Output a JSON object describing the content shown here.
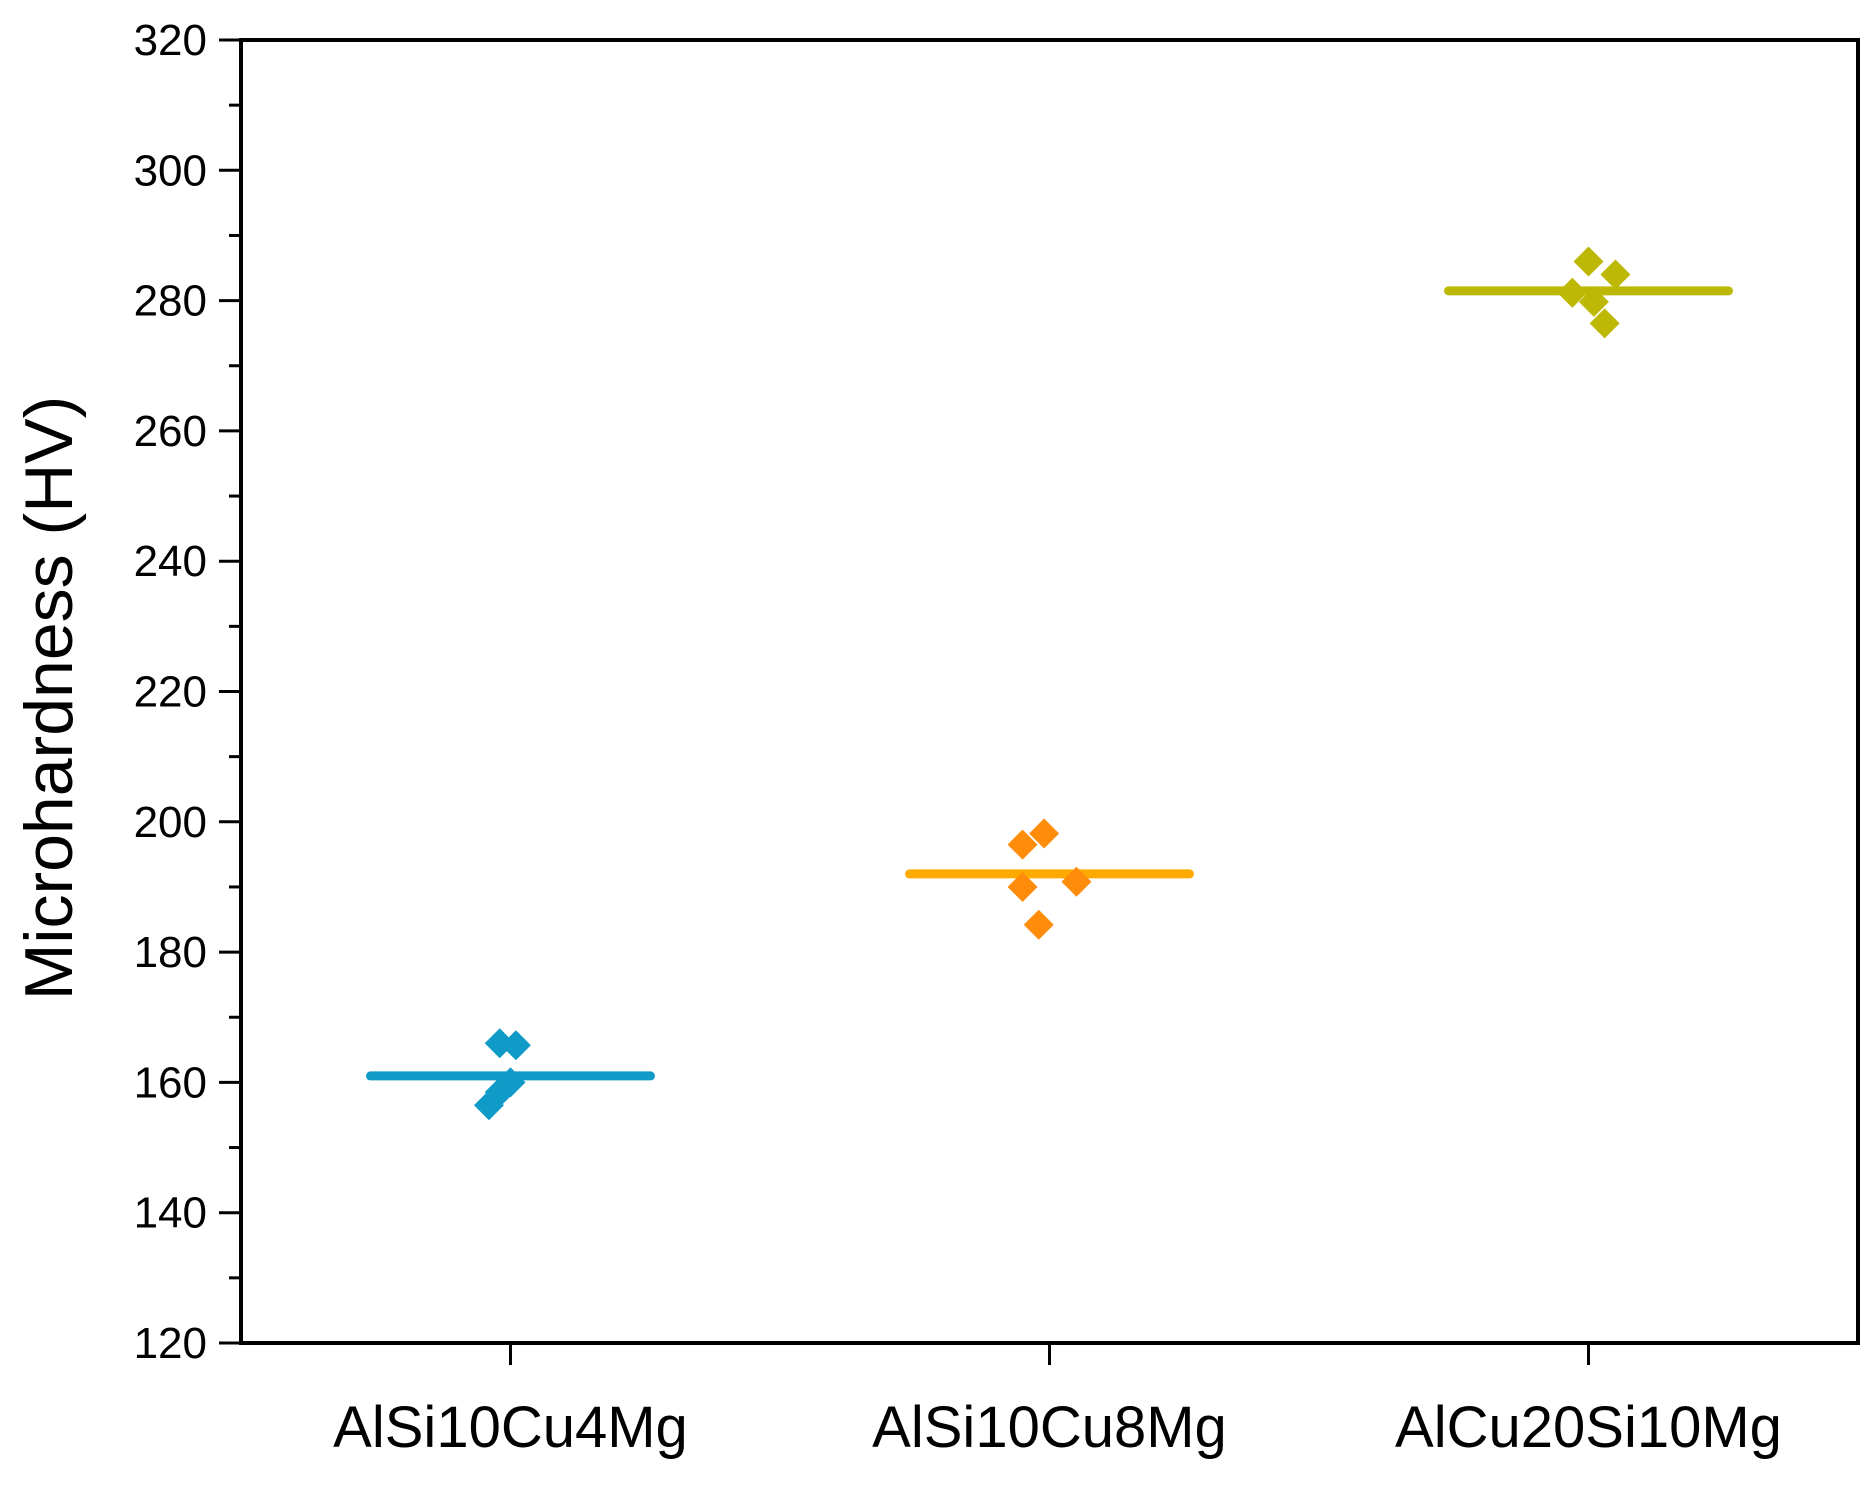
{
  "chart_data": {
    "type": "scatter",
    "title": "",
    "xlabel": "",
    "ylabel": "Microhardness (HV)",
    "ylim": [
      120,
      320
    ],
    "ytick_step": 20,
    "yminor_step": 10,
    "yticks": [
      "120",
      "140",
      "160",
      "180",
      "200",
      "220",
      "240",
      "260",
      "280",
      "300",
      "320"
    ],
    "categories": [
      "AlSi10Cu4Mg",
      "AlSi10Cu8Mg",
      "AlCu20Si10Mg"
    ],
    "grid": false,
    "legend": "none",
    "marker": "diamond",
    "series": [
      {
        "category": "AlSi10Cu4Mg",
        "color": "#0f9ac8",
        "mean": 161,
        "points": [
          {
            "offset": -0.02,
            "y": 166
          },
          {
            "offset": 0.01,
            "y": 165.7
          },
          {
            "offset": 0.0,
            "y": 160
          },
          {
            "offset": -0.02,
            "y": 158.5
          },
          {
            "offset": -0.04,
            "y": 156.5
          }
        ]
      },
      {
        "category": "AlSi10Cu8Mg",
        "color": "#ff8c0a",
        "line_color": "#ffaa00",
        "mean": 192,
        "points": [
          {
            "offset": -0.05,
            "y": 196.5
          },
          {
            "offset": -0.01,
            "y": 198.2
          },
          {
            "offset": -0.05,
            "y": 190
          },
          {
            "offset": 0.05,
            "y": 190.8
          },
          {
            "offset": -0.02,
            "y": 184.2
          }
        ]
      },
      {
        "category": "AlCu20Si10Mg",
        "color": "#bdb806",
        "mean": 281.5,
        "points": [
          {
            "offset": 0.0,
            "y": 286
          },
          {
            "offset": 0.05,
            "y": 284
          },
          {
            "offset": -0.03,
            "y": 281.2
          },
          {
            "offset": 0.01,
            "y": 279.8
          },
          {
            "offset": 0.03,
            "y": 276.5
          }
        ]
      }
    ]
  }
}
